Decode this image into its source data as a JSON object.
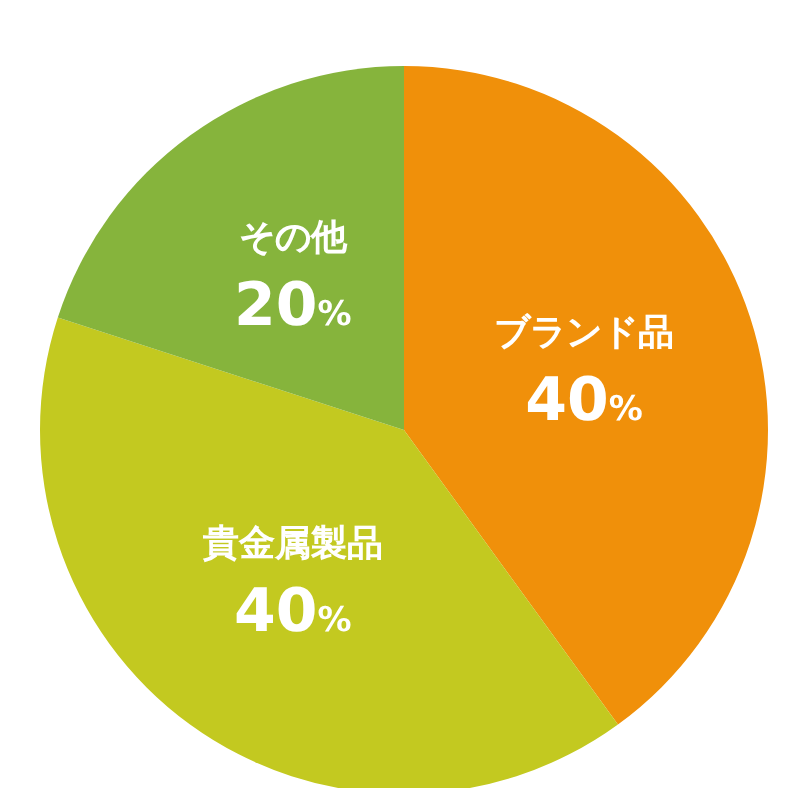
{
  "chart_data": {
    "type": "pie",
    "categories": [
      "ブランド品",
      "貴金属製品",
      "その他"
    ],
    "values": [
      40,
      40,
      20
    ],
    "colors": [
      "#f0900a",
      "#c3c920",
      "#86b43c"
    ],
    "value_labels": [
      "40%",
      "40%",
      "20%"
    ],
    "legend": false
  }
}
